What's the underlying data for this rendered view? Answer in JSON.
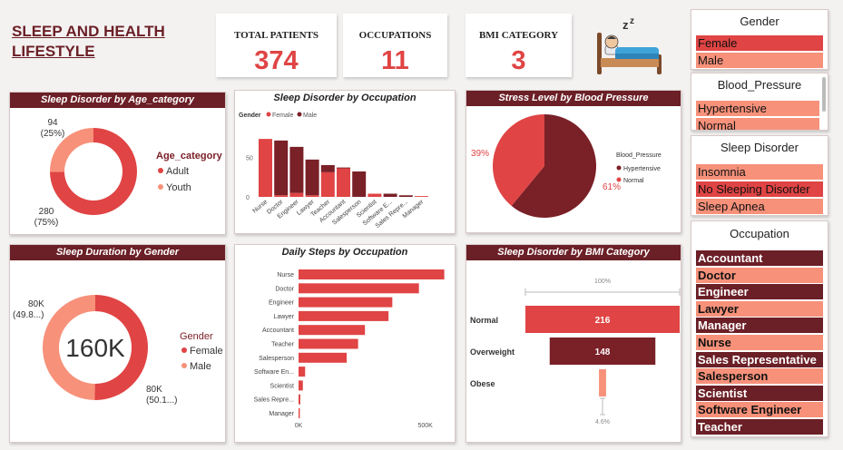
{
  "title": {
    "line1": "SLEEP AND HEALTH",
    "line2": "LIFESTYLE"
  },
  "kpis": [
    {
      "label": "TOTAL PATIENTS",
      "value": "374"
    },
    {
      "label": "OCCUPATIONS",
      "value": "11"
    },
    {
      "label": "BMI CATEGORY",
      "value": "3"
    }
  ],
  "icon": "sleeping-in-bed-icon",
  "colors": {
    "dark": "#6b1f26",
    "red": "#e04444",
    "salmon": "#f7917a",
    "darkred": "#7a2027"
  },
  "slicers": {
    "gender": {
      "title": "Gender",
      "items": [
        "Female",
        "Male"
      ]
    },
    "blood_pressure": {
      "title": "Blood_Pressure",
      "items": [
        "Hypertensive",
        "Normal"
      ]
    },
    "sleep_disorder": {
      "title": "Sleep Disorder",
      "items": [
        "Insomnia",
        "No Sleeping Disorder",
        "Sleep Apnea"
      ]
    },
    "occupation": {
      "title": "Occupation",
      "items": [
        "Accountant",
        "Doctor",
        "Engineer",
        "Lawyer",
        "Manager",
        "Nurse",
        "Sales Representative",
        "Salesperson",
        "Scientist",
        "Software Engineer",
        "Teacher"
      ]
    }
  },
  "chart_data": [
    {
      "id": "age",
      "type": "pie",
      "title": "Sleep Disorder by Age_category",
      "legend_title": "Age_category",
      "categories": [
        "Adult",
        "Youth"
      ],
      "values": [
        280,
        94
      ],
      "labels": [
        {
          "value": "280",
          "pct": "(75%)"
        },
        {
          "value": "94",
          "pct": "(25%)"
        }
      ],
      "donut": true
    },
    {
      "id": "occupation",
      "type": "bar",
      "title": "Sleep Disorder by Occupation",
      "legend_title": "Gender",
      "categories": [
        "Nurse",
        "Doctor",
        "Engineer",
        "Lawyer",
        "Teacher",
        "Accountant",
        "Salesperson",
        "Scientist",
        "Software E...",
        "Sales Repre...",
        "Manager"
      ],
      "series": [
        {
          "name": "Female",
          "values": [
            73,
            2,
            5,
            2,
            31,
            36,
            0,
            4,
            0,
            0,
            1
          ]
        },
        {
          "name": "Male",
          "values": [
            0,
            69,
            58,
            45,
            9,
            1,
            32,
            0,
            4,
            2,
            0
          ]
        }
      ],
      "yticks": [
        "0",
        "50"
      ],
      "ylim": [
        0,
        80
      ],
      "stacked": true
    },
    {
      "id": "stress",
      "type": "pie",
      "title": "Stress Level by Blood Pressure",
      "legend_title": "Blood_Pressure",
      "categories": [
        "Hypertensive",
        "Normal"
      ],
      "values": [
        61,
        39
      ],
      "labels": [
        {
          "pct": "61%"
        },
        {
          "pct": "39%"
        }
      ]
    },
    {
      "id": "duration",
      "type": "pie",
      "title": "Sleep Duration by Gender",
      "legend_title": "Gender",
      "categories": [
        "Female",
        "Male"
      ],
      "values": [
        50.1,
        49.8
      ],
      "labels": [
        {
          "value": "80K",
          "pct": "(50.1...)"
        },
        {
          "value": "80K",
          "pct": "(49.8...)"
        }
      ],
      "center_label": "160K",
      "donut": true
    },
    {
      "id": "steps",
      "type": "bar",
      "orientation": "horizontal",
      "title": "Daily Steps by Occupation",
      "categories": [
        "Nurse",
        "Doctor",
        "Engineer",
        "Lawyer",
        "Accountant",
        "Teacher",
        "Salesperson",
        "Software En...",
        "Scientist",
        "Sales Repre...",
        "Manager"
      ],
      "values": [
        575000,
        475000,
        370000,
        355000,
        262000,
        235000,
        190000,
        26000,
        17000,
        7000,
        5000
      ],
      "xticks": [
        "0K",
        "500K"
      ],
      "xlim": [
        0,
        580000
      ]
    },
    {
      "id": "bmi",
      "type": "bar",
      "subtype": "funnel",
      "title": "Sleep Disorder by BMI Category",
      "categories": [
        "Normal",
        "Overweight",
        "Obese"
      ],
      "values": [
        216,
        148,
        10
      ],
      "top_label": "100%",
      "bottom_label": "4.6%"
    }
  ]
}
